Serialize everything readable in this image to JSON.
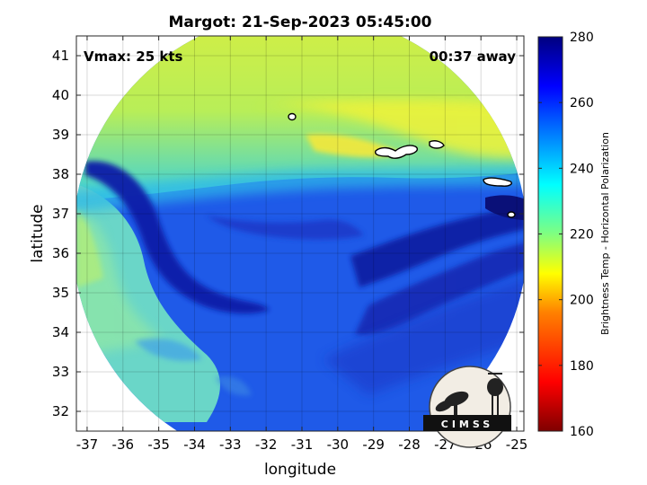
{
  "header": {
    "title": "Margot: 21-Sep-2023 05:45:00",
    "vmax_label": "Vmax: 25 kts",
    "time_offset_label": "00:37 away"
  },
  "map": {
    "xlabel": "longitude",
    "ylabel": "latitude",
    "xlim": [
      -37.3,
      -24.8
    ],
    "ylim": [
      31.5,
      41.5
    ],
    "xticks": [
      "-37",
      "-36",
      "-35",
      "-34",
      "-33",
      "-32",
      "-31",
      "-30",
      "-29",
      "-28",
      "-27",
      "-26",
      "-25"
    ],
    "yticks": [
      "32",
      "33",
      "34",
      "35",
      "36",
      "37",
      "38",
      "39",
      "40",
      "41"
    ],
    "grid": true,
    "swath_shape": "circle",
    "colormap": "jet"
  },
  "colorbar": {
    "label": "Brightness Temp - Horizontal Polarization",
    "range": [
      160,
      280
    ],
    "ticks": [
      "160",
      "180",
      "200",
      "220",
      "240",
      "260",
      "280"
    ],
    "colors": [
      "#7f0000",
      "#ff0000",
      "#ff8000",
      "#ffff00",
      "#80ff80",
      "#00ffff",
      "#0080ff",
      "#0000ff",
      "#00007f"
    ]
  },
  "logo": {
    "text": "CIMSS"
  }
}
